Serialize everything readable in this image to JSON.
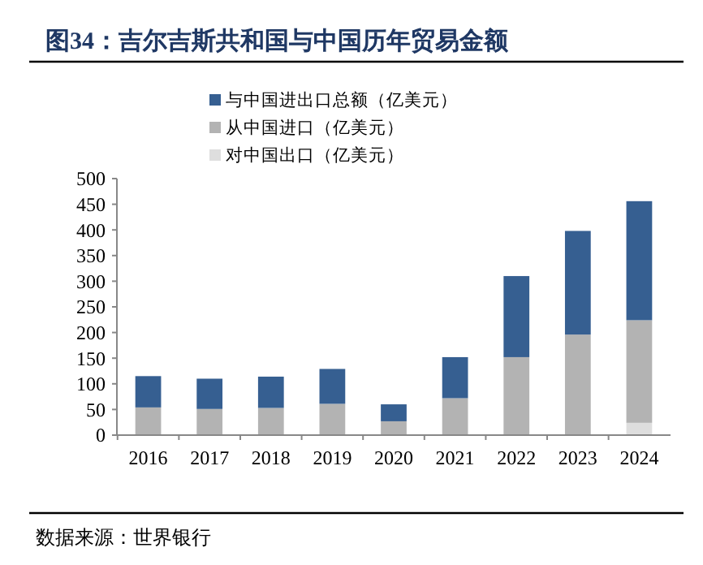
{
  "chart_data": {
    "type": "bar",
    "title": "图34：吉尔吉斯共和国与中国历年贸易金额",
    "categories": [
      "2016",
      "2017",
      "2018",
      "2019",
      "2020",
      "2021",
      "2022",
      "2023",
      "2024"
    ],
    "series": [
      {
        "name": "对中国出口（亿美元）",
        "color": "#dedede",
        "values": [
          0,
          0,
          0,
          0,
          0,
          0,
          0,
          0,
          24
        ]
      },
      {
        "name": "从中国进口（亿美元）",
        "color": "#b3b3b3",
        "values": [
          54,
          51,
          53,
          61,
          27,
          72,
          152,
          196,
          200
        ]
      },
      {
        "name": "与中国进出口总额（亿美元）",
        "color": "#365f91",
        "values": [
          61,
          59,
          61,
          68,
          33,
          80,
          158,
          202,
          232
        ]
      }
    ],
    "stacked": true,
    "ylim": [
      0,
      500
    ],
    "yticks": [
      0,
      50,
      100,
      150,
      200,
      250,
      300,
      350,
      400,
      450,
      500
    ],
    "grid": false,
    "legend": "top",
    "annotations": [
      "数据来源：世界银行"
    ]
  }
}
